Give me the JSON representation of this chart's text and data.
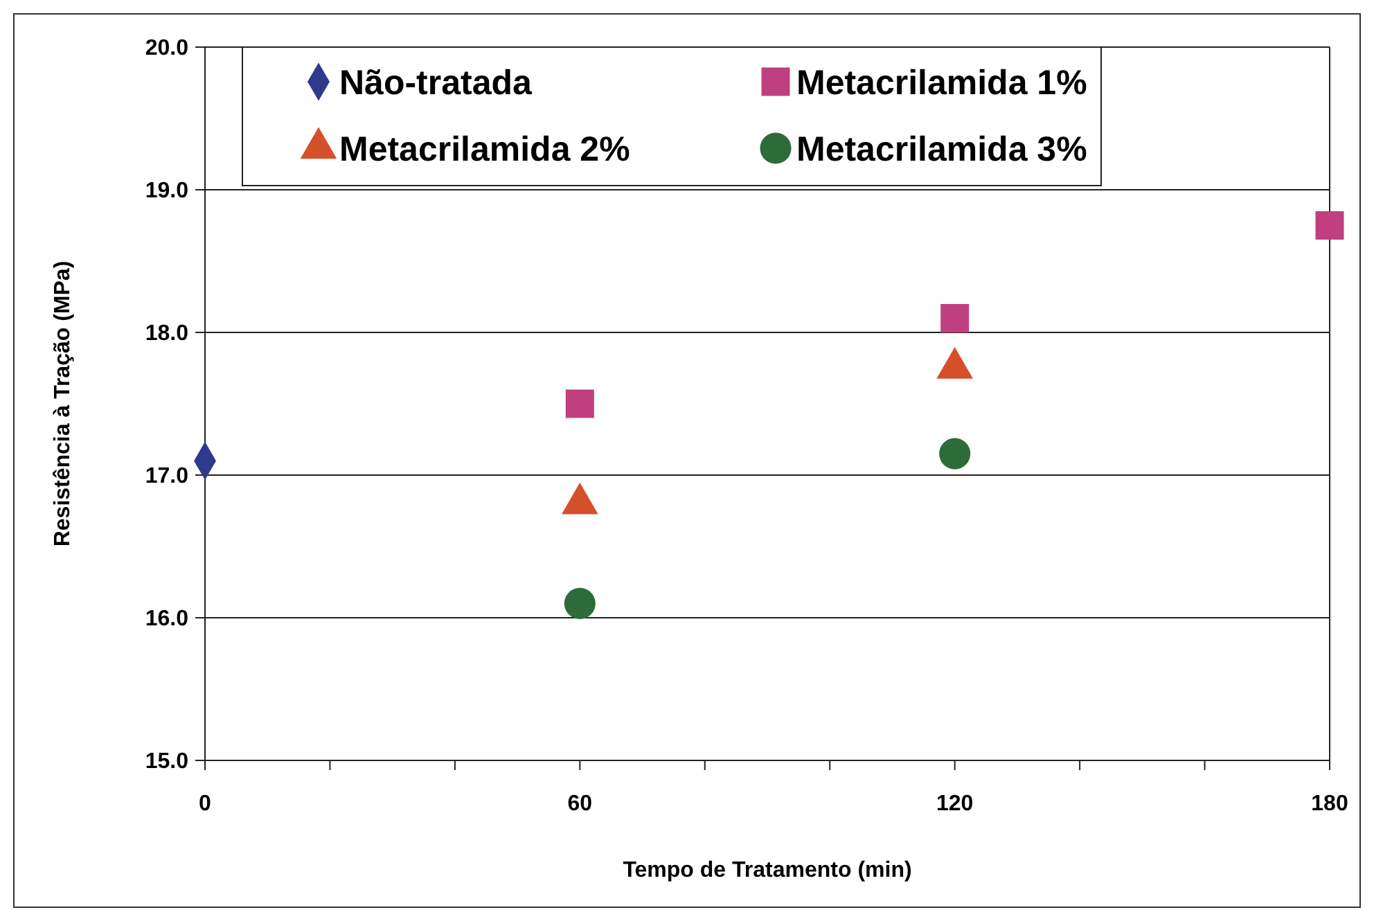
{
  "chart_data": {
    "type": "scatter",
    "xlabel": "Tempo de Tratamento (min)",
    "ylabel": "Resistência à Tração (MPa)",
    "xlim": [
      0,
      180
    ],
    "xticks": [
      0,
      {
        "value": 20,
        "label": null
      },
      {
        "value": 40,
        "label": null
      },
      60,
      {
        "value": 80,
        "label": null
      },
      {
        "value": 100,
        "label": null
      },
      120,
      {
        "value": 140,
        "label": null
      },
      {
        "value": 160,
        "label": null
      },
      180
    ],
    "ylim": [
      15,
      20
    ],
    "yticks": [
      {
        "value": 15,
        "label": "15.0"
      },
      {
        "value": 16,
        "label": "16.0"
      },
      {
        "value": 17,
        "label": "17.0"
      },
      {
        "value": 18,
        "label": "18.0"
      },
      {
        "value": 19,
        "label": "19.0"
      },
      {
        "value": 20,
        "label": "20.0"
      }
    ],
    "grid": "y",
    "legend": "top",
    "series": [
      {
        "name": "Não-tratada",
        "color": "#2e3a8c",
        "marker": "diamond",
        "x": [
          0
        ],
        "values": [
          17.1
        ]
      },
      {
        "name": "Metacrilamida 1%",
        "color": "#c0407f",
        "marker": "square",
        "x": [
          60,
          120,
          180
        ],
        "values": [
          17.5,
          18.1,
          18.75
        ]
      },
      {
        "name": "Metacrilamida 2%",
        "color": "#d4502a",
        "marker": "triangle",
        "x": [
          60,
          120
        ],
        "values": [
          16.8,
          17.75
        ]
      },
      {
        "name": "Metacrilamida 3%",
        "color": "#2e6b3a",
        "marker": "circle",
        "x": [
          60,
          120
        ],
        "values": [
          16.1,
          17.15
        ]
      }
    ]
  }
}
